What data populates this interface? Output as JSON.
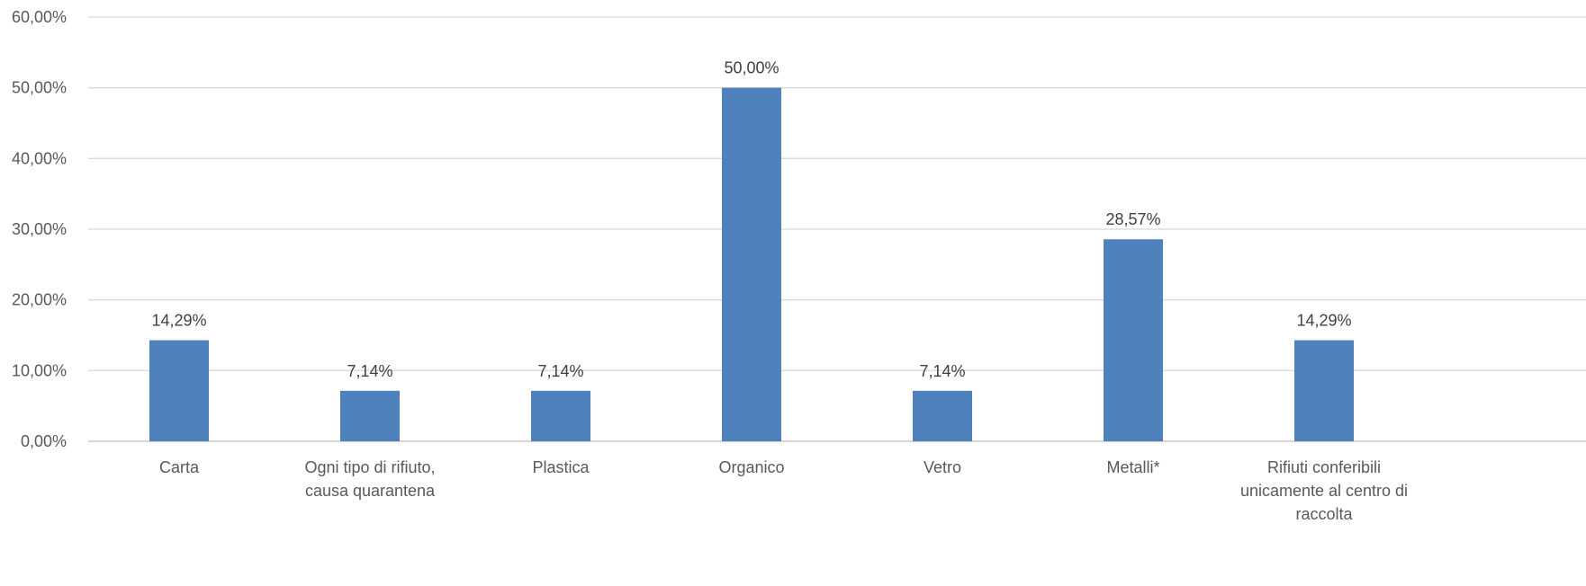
{
  "chart_data": {
    "type": "bar",
    "title": "",
    "xlabel": "",
    "ylabel": "",
    "categories": [
      [
        "Carta"
      ],
      [
        "Ogni tipo di rifiuto,",
        "causa quarantena"
      ],
      [
        "Plastica"
      ],
      [
        "Organico"
      ],
      [
        "Vetro"
      ],
      [
        "Metalli*"
      ],
      [
        "Rifiuti conferibili",
        "unicamente al centro di",
        "raccolta"
      ]
    ],
    "values": [
      14.29,
      7.14,
      7.14,
      50.0,
      7.14,
      28.57,
      14.29
    ],
    "data_labels": [
      "14,29%",
      "7,14%",
      "7,14%",
      "50,00%",
      "7,14%",
      "28,57%",
      "14,29%"
    ],
    "ylim": [
      0,
      60
    ],
    "yticks": [
      0,
      10,
      20,
      30,
      40,
      50,
      60
    ],
    "ytick_labels": [
      "0,00%",
      "10,00%",
      "20,00%",
      "30,00%",
      "40,00%",
      "50,00%",
      "60,00%"
    ],
    "grid": true,
    "legend": "none",
    "bar_color": "#4f81bd"
  }
}
